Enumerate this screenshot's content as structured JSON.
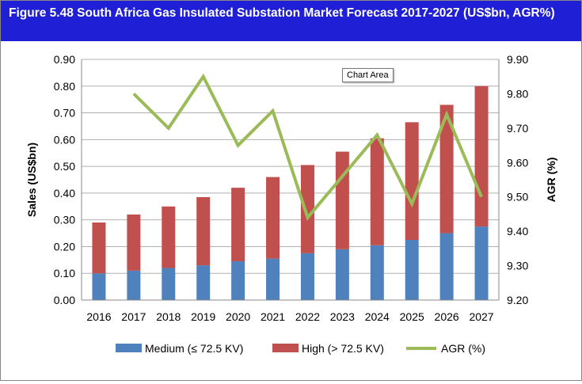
{
  "title": "Figure 5.48 South Africa Gas Insulated Substation Market Forecast 2017-2027 (US$bn, AGR%)",
  "tooltip": "Chart Area",
  "colors": {
    "medium": "#4f81bd",
    "high": "#c0504d",
    "agr": "#9bbb59",
    "title_bg": "#1f1fd6"
  },
  "chart_data": {
    "type": "bar",
    "stacked": true,
    "categories": [
      "2016",
      "2017",
      "2018",
      "2019",
      "2020",
      "2021",
      "2022",
      "2023",
      "2024",
      "2025",
      "2026",
      "2027"
    ],
    "series": [
      {
        "name": "Medium (≤ 72.5 KV)",
        "axis": "left",
        "type": "bar",
        "values": [
          0.1,
          0.11,
          0.12,
          0.13,
          0.145,
          0.155,
          0.175,
          0.19,
          0.205,
          0.225,
          0.25,
          0.275
        ]
      },
      {
        "name": "High (> 72.5 KV)",
        "axis": "left",
        "type": "bar",
        "values": [
          0.19,
          0.21,
          0.23,
          0.255,
          0.275,
          0.305,
          0.33,
          0.365,
          0.4,
          0.44,
          0.48,
          0.525
        ]
      },
      {
        "name": "AGR (%)",
        "axis": "right",
        "type": "line",
        "values": [
          null,
          9.8,
          9.7,
          9.85,
          9.65,
          9.75,
          9.44,
          9.56,
          9.68,
          9.48,
          9.74,
          9.5
        ]
      }
    ],
    "ylabel": "Sales (US$bn)",
    "ylim": [
      0,
      0.9
    ],
    "yticks": [
      "0.00",
      "0.10",
      "0.20",
      "0.30",
      "0.40",
      "0.50",
      "0.60",
      "0.70",
      "0.80",
      "0.90"
    ],
    "y2label": "AGR (%)",
    "y2lim": [
      9.2,
      9.9
    ],
    "y2ticks": [
      "9.20",
      "9.30",
      "9.40",
      "9.50",
      "9.60",
      "9.70",
      "9.80",
      "9.90"
    ],
    "grid": true,
    "legend": "bottom"
  }
}
